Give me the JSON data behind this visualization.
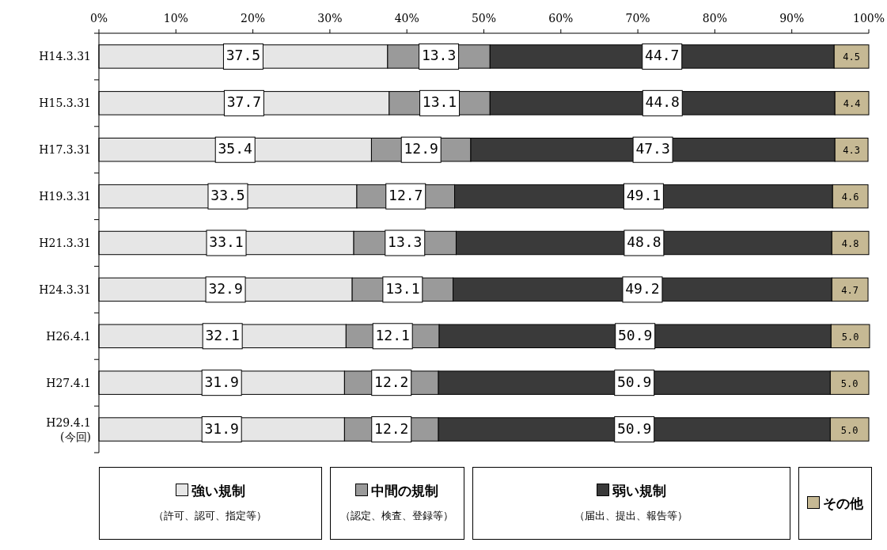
{
  "chart_data": {
    "type": "bar",
    "orientation": "horizontal",
    "stacked": true,
    "categories": [
      "H14.3.31",
      "H15.3.31",
      "H17.3.31",
      "H19.3.31",
      "H21.3.31",
      "H24.3.31",
      "H26.4.1",
      "H27.4.1",
      "H29.4.1\n(今回)"
    ],
    "series": [
      {
        "name": "強い規制（許可、認可、指定等）",
        "color": "#e6e6e6",
        "values": [
          37.5,
          37.7,
          35.4,
          33.5,
          33.1,
          32.9,
          32.1,
          31.9,
          31.9
        ],
        "value_labels": [
          "37.5",
          "37.7",
          "35.4",
          "33.5",
          "33.1",
          "32.9",
          "32.1",
          "31.9",
          "31.9"
        ]
      },
      {
        "name": "中間の規制（認定、検査、登録等）",
        "color": "#9a9a9a",
        "values": [
          13.3,
          13.1,
          12.9,
          12.7,
          13.3,
          13.1,
          12.1,
          12.2,
          12.2
        ],
        "value_labels": [
          "13.3",
          "13.1",
          "12.9",
          "12.7",
          "13.3",
          "13.1",
          "12.1",
          "12.2",
          "12.2"
        ]
      },
      {
        "name": "弱い規制（届出、提出、報告等）",
        "color": "#3a3a3a",
        "values": [
          44.7,
          44.8,
          47.3,
          49.1,
          48.8,
          49.2,
          50.9,
          50.9,
          50.9
        ],
        "value_labels": [
          "44.7",
          "44.8",
          "47.3",
          "49.1",
          "48.8",
          "49.2",
          "50.9",
          "50.9",
          "50.9"
        ]
      },
      {
        "name": "その他",
        "color": "#c6b994",
        "values": [
          4.5,
          4.4,
          4.3,
          4.6,
          4.8,
          4.7,
          5.0,
          5.0,
          5.0
        ],
        "value_labels": [
          "4.5",
          "4.4",
          "4.3",
          "4.6",
          "4.8",
          "4.7",
          "5.0",
          "5.0",
          "5.0"
        ]
      }
    ],
    "xlim": [
      0,
      100
    ],
    "xticks": [
      {
        "value": 0,
        "label": "0%"
      },
      {
        "value": 10,
        "label": "10%"
      },
      {
        "value": 20,
        "label": "20%"
      },
      {
        "value": 30,
        "label": "30%"
      },
      {
        "value": 40,
        "label": "40%"
      },
      {
        "value": 50,
        "label": "50%"
      },
      {
        "value": 60,
        "label": "60%"
      },
      {
        "value": 70,
        "label": "70%"
      },
      {
        "value": 80,
        "label": "80%"
      },
      {
        "value": 90,
        "label": "90%"
      },
      {
        "value": 100,
        "label": "100%"
      }
    ],
    "grid": false,
    "legend": "bottom"
  }
}
